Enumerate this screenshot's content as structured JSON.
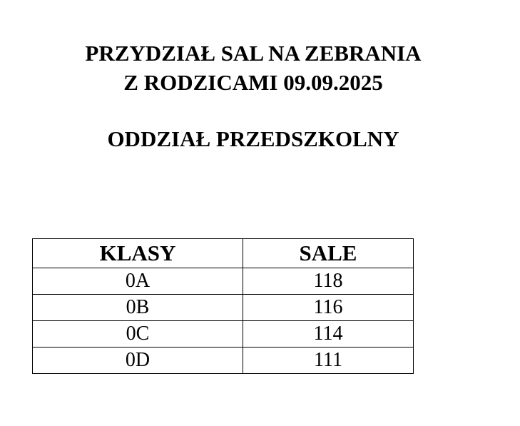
{
  "title": {
    "line1": "PRZYDZIAŁ SAL NA ZEBRANIA",
    "line2": "Z RODZICAMI 09.09.2025",
    "line3": "ODDZIAŁ PRZEDSZKOLNY"
  },
  "table": {
    "headers": [
      "KLASY",
      "SALE"
    ],
    "rows": [
      [
        "0A",
        "118"
      ],
      [
        "0B",
        "116"
      ],
      [
        "0C",
        "114"
      ],
      [
        "0D",
        "111"
      ]
    ]
  }
}
